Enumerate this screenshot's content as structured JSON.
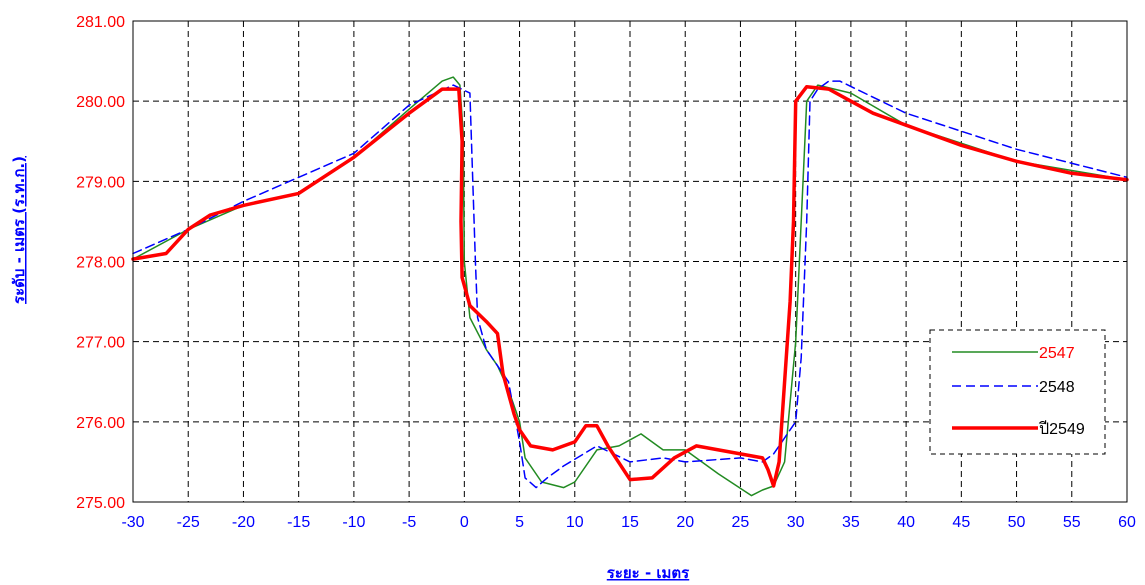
{
  "chart_data": {
    "type": "line",
    "xlabel": "ระยะ - เมตร",
    "ylabel": "ระดับ - เมตร (ร.ท.ก.)",
    "xlim": [
      -30,
      60
    ],
    "ylim": [
      275,
      281
    ],
    "xticks": [
      "-30",
      "-25",
      "-20",
      "-15",
      "-10",
      "-5",
      "0",
      "5",
      "10",
      "15",
      "20",
      "25",
      "30",
      "35",
      "40",
      "45",
      "50",
      "55",
      "60"
    ],
    "yticks": [
      "275.00",
      "276.00",
      "277.00",
      "278.00",
      "279.00",
      "280.00",
      "281.00"
    ],
    "grid": true,
    "legend_position": "right",
    "series": [
      {
        "name": "2547",
        "color": "#228b22",
        "label_color": "#ff0000",
        "style": "solid",
        "points": [
          [
            -30,
            278.03
          ],
          [
            -25,
            278.4
          ],
          [
            -20,
            278.7
          ],
          [
            -15,
            278.85
          ],
          [
            -10,
            279.3
          ],
          [
            -5,
            279.9
          ],
          [
            -2,
            280.25
          ],
          [
            -1,
            280.3
          ],
          [
            -0.4,
            280.2
          ],
          [
            -0.1,
            279.6
          ],
          [
            0,
            278.0
          ],
          [
            0.5,
            277.3
          ],
          [
            2,
            276.9
          ],
          [
            3,
            276.7
          ],
          [
            4,
            276.4
          ],
          [
            5,
            276.0
          ],
          [
            5.5,
            275.55
          ],
          [
            7,
            275.25
          ],
          [
            9,
            275.18
          ],
          [
            10,
            275.25
          ],
          [
            12,
            275.65
          ],
          [
            14,
            275.7
          ],
          [
            16,
            275.85
          ],
          [
            18,
            275.65
          ],
          [
            20,
            275.65
          ],
          [
            23,
            275.35
          ],
          [
            26,
            275.08
          ],
          [
            27,
            275.15
          ],
          [
            28,
            275.2
          ],
          [
            29,
            275.5
          ],
          [
            30,
            277.0
          ],
          [
            30.5,
            278.5
          ],
          [
            31,
            280.0
          ],
          [
            32,
            280.2
          ],
          [
            35,
            280.1
          ],
          [
            40,
            279.7
          ],
          [
            50,
            279.25
          ],
          [
            60,
            279.02
          ]
        ]
      },
      {
        "name": "2548",
        "color": "#0000ff",
        "label_color": "#000000",
        "style": "dashed",
        "points": [
          [
            -30,
            278.1
          ],
          [
            -25,
            278.4
          ],
          [
            -20,
            278.75
          ],
          [
            -15,
            279.05
          ],
          [
            -10,
            279.35
          ],
          [
            -5,
            279.95
          ],
          [
            -1,
            280.2
          ],
          [
            0.5,
            280.1
          ],
          [
            1,
            278.0
          ],
          [
            1.2,
            277.3
          ],
          [
            2,
            276.9
          ],
          [
            3,
            276.7
          ],
          [
            4,
            276.5
          ],
          [
            5,
            275.75
          ],
          [
            5.5,
            275.3
          ],
          [
            6.5,
            275.18
          ],
          [
            7.5,
            275.3
          ],
          [
            9,
            275.45
          ],
          [
            12,
            275.7
          ],
          [
            15,
            275.5
          ],
          [
            18,
            275.55
          ],
          [
            20,
            275.5
          ],
          [
            25,
            275.55
          ],
          [
            27,
            275.5
          ],
          [
            28,
            275.6
          ],
          [
            29,
            275.8
          ],
          [
            30,
            276.0
          ],
          [
            30.5,
            276.8
          ],
          [
            31,
            278.5
          ],
          [
            31.3,
            280.0
          ],
          [
            32,
            280.15
          ],
          [
            33,
            280.25
          ],
          [
            34,
            280.25
          ],
          [
            40,
            279.85
          ],
          [
            50,
            279.4
          ],
          [
            60,
            279.05
          ]
        ]
      },
      {
        "name": "ปี2549",
        "color": "#ff0000",
        "label_color": "#000000",
        "style": "solid-thick",
        "points": [
          [
            -30,
            278.03
          ],
          [
            -27,
            278.1
          ],
          [
            -25,
            278.4
          ],
          [
            -23,
            278.58
          ],
          [
            -20,
            278.7
          ],
          [
            -15,
            278.85
          ],
          [
            -10,
            279.3
          ],
          [
            -5,
            279.85
          ],
          [
            -2,
            280.15
          ],
          [
            -0.5,
            280.15
          ],
          [
            -0.2,
            279.5
          ],
          [
            -0.3,
            278.5
          ],
          [
            -0.2,
            277.8
          ],
          [
            0.5,
            277.45
          ],
          [
            2,
            277.25
          ],
          [
            3,
            277.1
          ],
          [
            3.5,
            276.6
          ],
          [
            4.5,
            276.1
          ],
          [
            5,
            275.9
          ],
          [
            6,
            275.7
          ],
          [
            8,
            275.65
          ],
          [
            10,
            275.75
          ],
          [
            11,
            275.95
          ],
          [
            12,
            275.95
          ],
          [
            13,
            275.7
          ],
          [
            15,
            275.28
          ],
          [
            17,
            275.3
          ],
          [
            19,
            275.55
          ],
          [
            21,
            275.7
          ],
          [
            23,
            275.65
          ],
          [
            25,
            275.6
          ],
          [
            27,
            275.55
          ],
          [
            27.5,
            275.4
          ],
          [
            28,
            275.2
          ],
          [
            28.5,
            275.5
          ],
          [
            29,
            276.5
          ],
          [
            29.5,
            277.5
          ],
          [
            29.8,
            278.5
          ],
          [
            30,
            280.0
          ],
          [
            31,
            280.18
          ],
          [
            33,
            280.15
          ],
          [
            35,
            280.0
          ],
          [
            37,
            279.85
          ],
          [
            40,
            279.7
          ],
          [
            45,
            279.45
          ],
          [
            50,
            279.25
          ],
          [
            55,
            279.1
          ],
          [
            60,
            279.02
          ]
        ]
      }
    ]
  }
}
